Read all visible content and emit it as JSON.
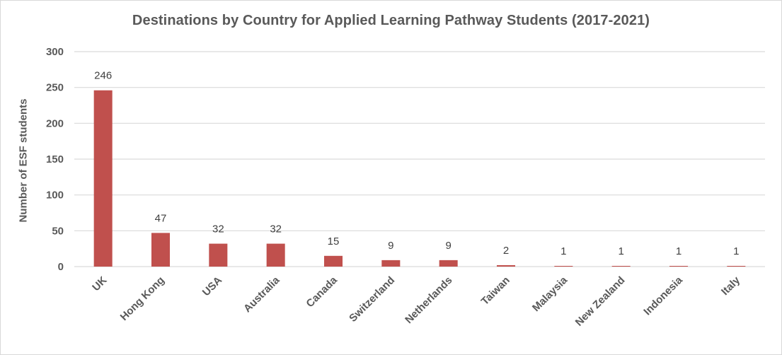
{
  "chart_data": {
    "type": "bar",
    "title": "Destinations by Country for Applied Learning Pathway Students (2017-2021)",
    "xlabel": "",
    "ylabel": "Number of ESF students",
    "categories": [
      "UK",
      "Hong Kong",
      "USA",
      "Australia",
      "Canada",
      "Switzerland",
      "Netherlands",
      "Taiwan",
      "Malaysia",
      "New Zealand",
      "Indonesia",
      "Italy"
    ],
    "values": [
      246,
      47,
      32,
      32,
      15,
      9,
      9,
      2,
      1,
      1,
      1,
      1
    ],
    "ylim": [
      0,
      300
    ],
    "yticks": [
      0,
      50,
      100,
      150,
      200,
      250,
      300
    ],
    "grid": true,
    "legend": null,
    "data_labels": true,
    "bar_color": "#c0504d",
    "x_label_rotation": -45
  }
}
